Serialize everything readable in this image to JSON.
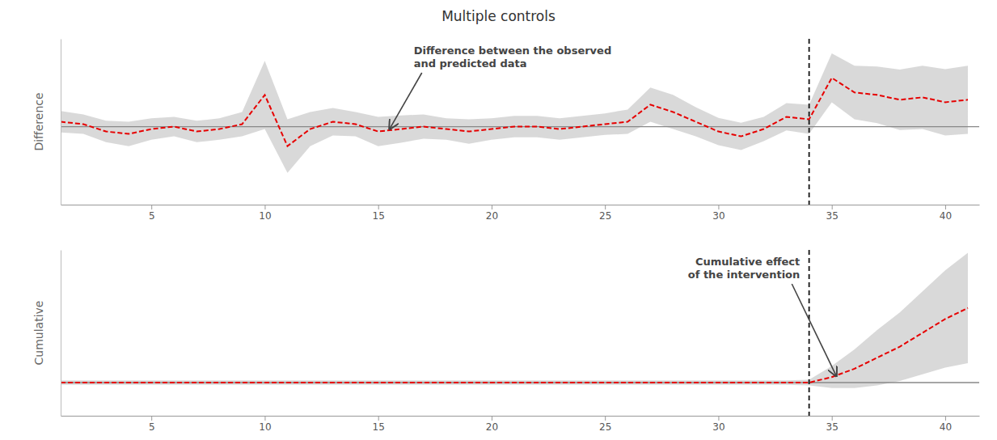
{
  "chart_data": [
    {
      "type": "line",
      "title": "Multiple controls",
      "ylabel": "Difference",
      "x": [
        1,
        2,
        3,
        4,
        5,
        6,
        7,
        8,
        9,
        10,
        11,
        12,
        13,
        14,
        15,
        16,
        17,
        18,
        19,
        20,
        21,
        22,
        23,
        24,
        25,
        26,
        27,
        28,
        29,
        30,
        31,
        32,
        33,
        34,
        35,
        36,
        37,
        38,
        39,
        40,
        41
      ],
      "values": [
        0.1,
        0.05,
        -0.1,
        -0.15,
        -0.05,
        0.0,
        -0.1,
        -0.05,
        0.05,
        0.65,
        -0.4,
        -0.05,
        0.1,
        0.05,
        -0.1,
        -0.05,
        0.0,
        -0.05,
        -0.1,
        -0.05,
        0.0,
        0.0,
        -0.05,
        0.0,
        0.05,
        0.1,
        0.45,
        0.3,
        0.1,
        -0.1,
        -0.2,
        -0.05,
        0.2,
        0.15,
        1.0,
        0.7,
        0.65,
        0.55,
        0.6,
        0.5,
        0.55
      ],
      "lower": [
        -0.12,
        -0.15,
        -0.32,
        -0.4,
        -0.27,
        -0.2,
        -0.32,
        -0.27,
        -0.2,
        -0.05,
        -0.95,
        -0.4,
        -0.18,
        -0.2,
        -0.4,
        -0.33,
        -0.25,
        -0.27,
        -0.35,
        -0.27,
        -0.22,
        -0.22,
        -0.27,
        -0.22,
        -0.17,
        -0.15,
        0.1,
        -0.05,
        -0.2,
        -0.38,
        -0.48,
        -0.3,
        -0.08,
        -0.15,
        0.5,
        0.15,
        0.07,
        -0.07,
        -0.05,
        -0.18,
        -0.15
      ],
      "upper": [
        0.32,
        0.25,
        0.12,
        0.1,
        0.17,
        0.2,
        0.12,
        0.17,
        0.3,
        1.35,
        0.15,
        0.3,
        0.38,
        0.3,
        0.2,
        0.23,
        0.25,
        0.17,
        0.15,
        0.17,
        0.22,
        0.22,
        0.17,
        0.22,
        0.27,
        0.35,
        0.8,
        0.65,
        0.4,
        0.18,
        0.08,
        0.2,
        0.48,
        0.45,
        1.5,
        1.25,
        1.23,
        1.17,
        1.25,
        1.18,
        1.25
      ],
      "color": "#e60000",
      "xlim": [
        1,
        41.5
      ],
      "xticks": [
        5,
        10,
        15,
        20,
        25,
        30,
        35,
        40
      ],
      "ylim": [
        -1.6,
        1.8
      ],
      "tick_labels": "x",
      "zero_line": 0,
      "intervention": 34,
      "annotations": [
        {
          "text": "Difference between the observed\nand predicted data",
          "x": 15.5,
          "y": -0.05
        }
      ]
    },
    {
      "type": "line",
      "ylabel": "Cumulative",
      "x": [
        1,
        2,
        3,
        4,
        5,
        6,
        7,
        8,
        9,
        10,
        11,
        12,
        13,
        14,
        15,
        16,
        17,
        18,
        19,
        20,
        21,
        22,
        23,
        24,
        25,
        26,
        27,
        28,
        29,
        30,
        31,
        32,
        33,
        34,
        35,
        36,
        37,
        38,
        39,
        40,
        41
      ],
      "values": [
        0,
        0,
        0,
        0,
        0,
        0,
        0,
        0,
        0,
        0,
        0,
        0,
        0,
        0,
        0,
        0,
        0,
        0,
        0,
        0,
        0,
        0,
        0,
        0,
        0,
        0,
        0,
        0,
        0,
        0,
        0,
        0,
        0,
        0.0,
        0.1,
        0.25,
        0.45,
        0.65,
        0.9,
        1.15,
        1.35
      ],
      "lower": [
        -0.04,
        -0.04,
        -0.04,
        -0.04,
        -0.04,
        -0.04,
        -0.04,
        -0.04,
        -0.04,
        -0.04,
        -0.04,
        -0.04,
        -0.04,
        -0.04,
        -0.04,
        -0.04,
        -0.04,
        -0.04,
        -0.04,
        -0.04,
        -0.04,
        -0.04,
        -0.04,
        -0.04,
        -0.04,
        -0.04,
        -0.04,
        -0.04,
        -0.04,
        -0.04,
        -0.04,
        -0.04,
        -0.04,
        -0.05,
        -0.1,
        -0.1,
        -0.05,
        0.03,
        0.15,
        0.27,
        0.35
      ],
      "upper": [
        0.04,
        0.04,
        0.04,
        0.04,
        0.04,
        0.04,
        0.04,
        0.04,
        0.04,
        0.04,
        0.04,
        0.04,
        0.04,
        0.04,
        0.04,
        0.04,
        0.04,
        0.04,
        0.04,
        0.04,
        0.04,
        0.04,
        0.04,
        0.04,
        0.04,
        0.04,
        0.04,
        0.04,
        0.04,
        0.04,
        0.04,
        0.04,
        0.04,
        0.05,
        0.3,
        0.6,
        0.95,
        1.27,
        1.65,
        2.03,
        2.35
      ],
      "color": "#e60000",
      "xlim": [
        1,
        41.5
      ],
      "xticks": [
        5,
        10,
        15,
        20,
        25,
        30,
        35,
        40
      ],
      "ylim": [
        -0.6,
        2.4
      ],
      "tick_labels": "x",
      "zero_line": 0,
      "intervention": 34,
      "annotations": [
        {
          "text": "Cumulative effect\nof the intervention",
          "x": 35.2,
          "y": 0.12
        }
      ]
    }
  ]
}
